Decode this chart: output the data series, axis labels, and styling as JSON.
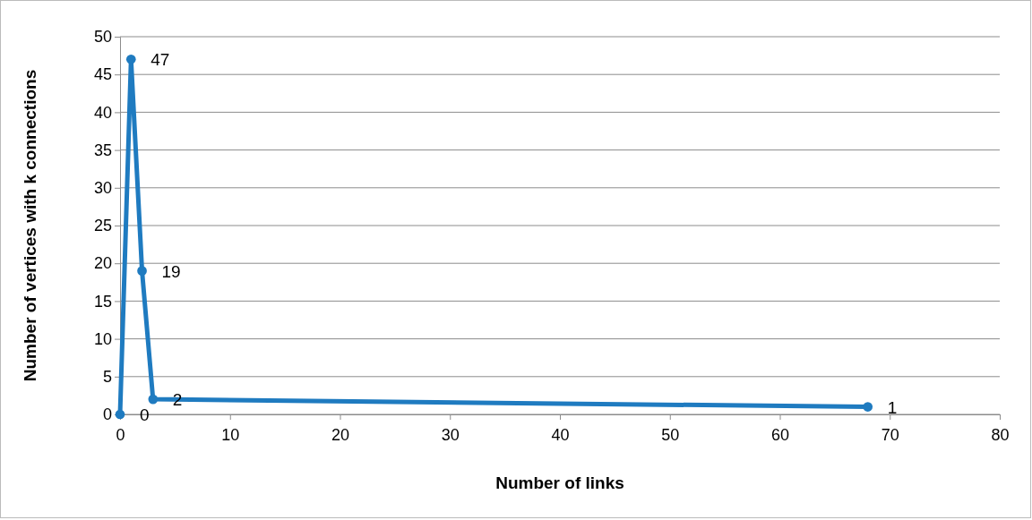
{
  "chart_data": {
    "type": "line",
    "xlabel": "Number of links",
    "ylabel": "Number of vertices with k connections",
    "x": [
      0,
      1,
      2,
      3,
      68
    ],
    "series": [
      {
        "color": "#1f7bc0",
        "values": [
          0,
          47,
          19,
          2,
          1
        ]
      }
    ],
    "xlim": [
      0,
      80
    ],
    "xticks": [
      0,
      10,
      20,
      30,
      40,
      50,
      60,
      70,
      80
    ],
    "ylim": [
      0,
      50
    ],
    "yticks": [
      0,
      5,
      10,
      15,
      20,
      25,
      30,
      35,
      40,
      45,
      50
    ],
    "grid": "y",
    "data_labels": true,
    "marker": "circle",
    "line_style": "solid"
  }
}
